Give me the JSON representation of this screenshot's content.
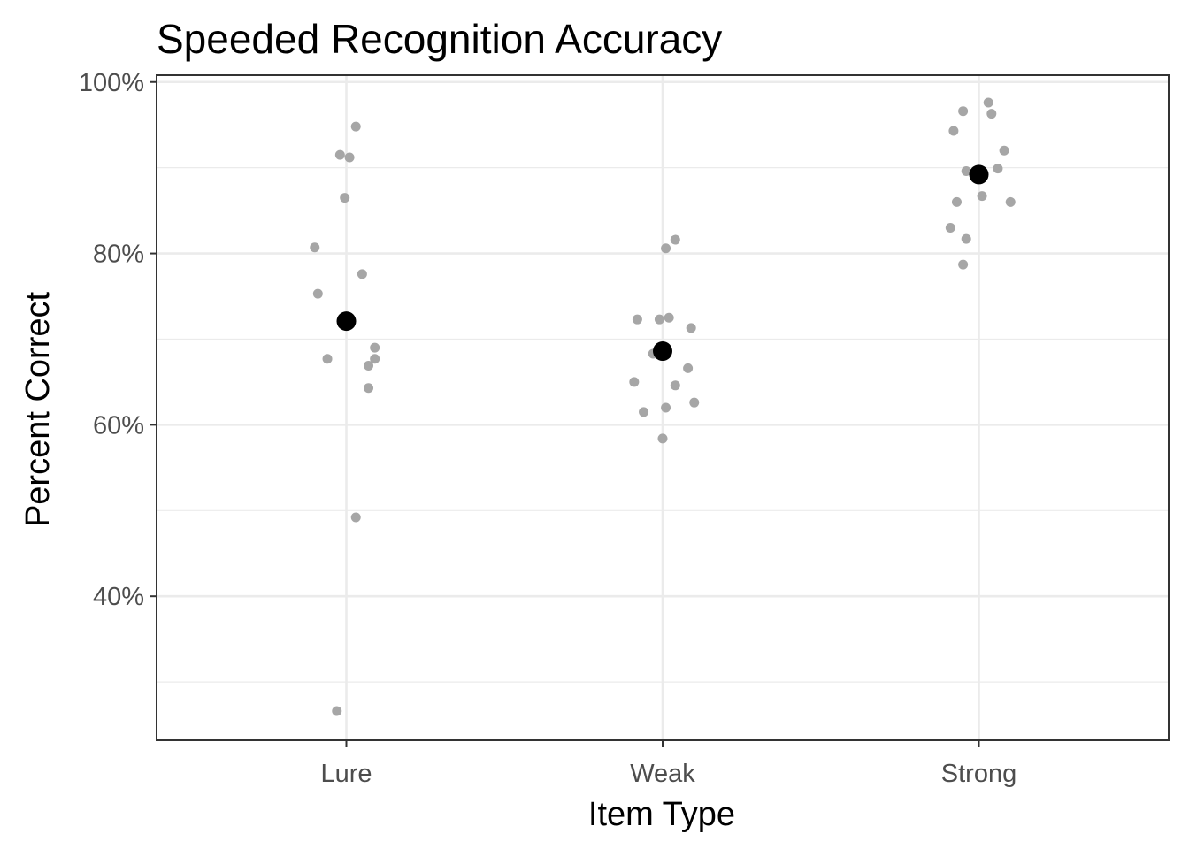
{
  "chart_data": {
    "type": "scatter",
    "title": "Speeded Recognition Accuracy",
    "xlabel": "Item Type",
    "ylabel": "Percent Correct",
    "categories": [
      "Lure",
      "Weak",
      "Strong"
    ],
    "ylim": [
      23.2,
      100.8
    ],
    "y_ticks": [
      40,
      60,
      80,
      100
    ],
    "y_tick_labels": [
      "40%",
      "60%",
      "80%",
      "100%"
    ],
    "grid": true,
    "legend": "none",
    "colors": {
      "points": "#a6a6a6",
      "means": "#000000",
      "grid": "#ebebeb",
      "frame": "#333333"
    },
    "series": [
      {
        "role": "individual",
        "points": [
          {
            "category": "Lure",
            "offset": 0.03,
            "y": 94.8
          },
          {
            "category": "Lure",
            "offset": -0.02,
            "y": 91.5
          },
          {
            "category": "Lure",
            "offset": 0.01,
            "y": 91.2
          },
          {
            "category": "Lure",
            "offset": -0.005,
            "y": 86.5
          },
          {
            "category": "Lure",
            "offset": -0.1,
            "y": 80.7
          },
          {
            "category": "Lure",
            "offset": 0.05,
            "y": 77.6
          },
          {
            "category": "Lure",
            "offset": -0.09,
            "y": 75.3
          },
          {
            "category": "Lure",
            "offset": 0.09,
            "y": 69.0
          },
          {
            "category": "Lure",
            "offset": -0.06,
            "y": 67.7
          },
          {
            "category": "Lure",
            "offset": 0.09,
            "y": 67.7
          },
          {
            "category": "Lure",
            "offset": 0.07,
            "y": 66.9
          },
          {
            "category": "Lure",
            "offset": 0.07,
            "y": 64.3
          },
          {
            "category": "Lure",
            "offset": 0.03,
            "y": 49.2
          },
          {
            "category": "Lure",
            "offset": -0.03,
            "y": 26.6
          },
          {
            "category": "Weak",
            "offset": 0.04,
            "y": 81.6
          },
          {
            "category": "Weak",
            "offset": 0.01,
            "y": 80.6
          },
          {
            "category": "Weak",
            "offset": -0.08,
            "y": 72.3
          },
          {
            "category": "Weak",
            "offset": -0.01,
            "y": 72.3
          },
          {
            "category": "Weak",
            "offset": 0.02,
            "y": 72.5
          },
          {
            "category": "Weak",
            "offset": 0.09,
            "y": 71.3
          },
          {
            "category": "Weak",
            "offset": -0.03,
            "y": 68.3
          },
          {
            "category": "Weak",
            "offset": 0.08,
            "y": 66.6
          },
          {
            "category": "Weak",
            "offset": -0.09,
            "y": 65.0
          },
          {
            "category": "Weak",
            "offset": 0.04,
            "y": 64.6
          },
          {
            "category": "Weak",
            "offset": 0.1,
            "y": 62.6
          },
          {
            "category": "Weak",
            "offset": 0.01,
            "y": 62.0
          },
          {
            "category": "Weak",
            "offset": -0.06,
            "y": 61.5
          },
          {
            "category": "Weak",
            "offset": 0.0,
            "y": 58.4
          },
          {
            "category": "Strong",
            "offset": 0.03,
            "y": 97.6
          },
          {
            "category": "Strong",
            "offset": -0.05,
            "y": 96.6
          },
          {
            "category": "Strong",
            "offset": 0.04,
            "y": 96.3
          },
          {
            "category": "Strong",
            "offset": -0.08,
            "y": 94.3
          },
          {
            "category": "Strong",
            "offset": 0.08,
            "y": 92.0
          },
          {
            "category": "Strong",
            "offset": 0.06,
            "y": 89.9
          },
          {
            "category": "Strong",
            "offset": -0.04,
            "y": 89.6
          },
          {
            "category": "Strong",
            "offset": -0.07,
            "y": 86.0
          },
          {
            "category": "Strong",
            "offset": 0.01,
            "y": 86.7
          },
          {
            "category": "Strong",
            "offset": 0.1,
            "y": 86.0
          },
          {
            "category": "Strong",
            "offset": -0.09,
            "y": 83.0
          },
          {
            "category": "Strong",
            "offset": -0.04,
            "y": 81.7
          },
          {
            "category": "Strong",
            "offset": -0.05,
            "y": 78.7
          }
        ]
      },
      {
        "role": "mean",
        "points": [
          {
            "category": "Lure",
            "offset": 0,
            "y": 72.1
          },
          {
            "category": "Weak",
            "offset": 0,
            "y": 68.6
          },
          {
            "category": "Strong",
            "offset": 0,
            "y": 89.2
          }
        ]
      }
    ]
  }
}
